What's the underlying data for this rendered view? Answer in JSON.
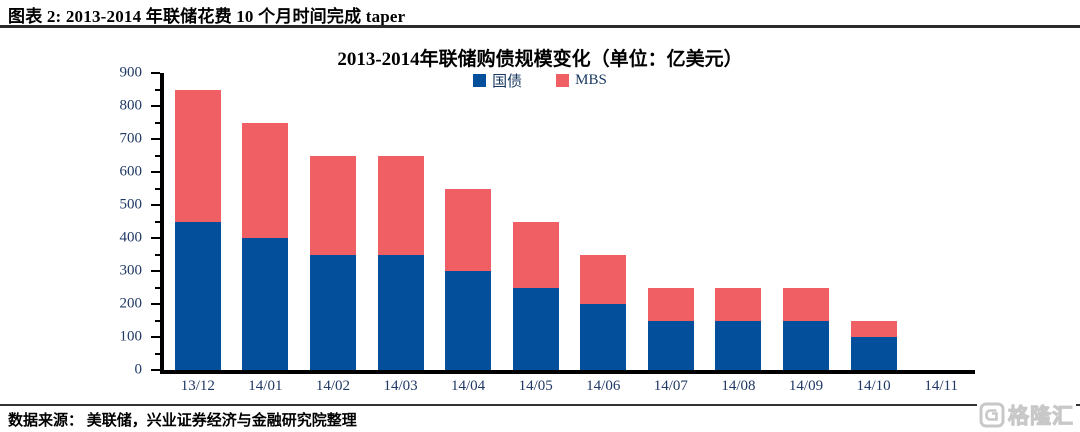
{
  "header": {
    "title": "图表 2: 2013-2014 年联储花费 10 个月时间完成 taper"
  },
  "chart_data": {
    "type": "bar",
    "stacked": true,
    "title": "2013-2014年联储购债规模变化（单位：亿美元）",
    "categories": [
      "13/12",
      "14/01",
      "14/02",
      "14/03",
      "14/04",
      "14/05",
      "14/06",
      "14/07",
      "14/08",
      "14/09",
      "14/10",
      "14/11"
    ],
    "series": [
      {
        "name": "国债",
        "color": "#034F9B",
        "values": [
          450,
          400,
          350,
          350,
          300,
          250,
          200,
          150,
          150,
          150,
          100,
          0
        ]
      },
      {
        "name": "MBS",
        "color": "#EF5F63",
        "values": [
          400,
          350,
          300,
          300,
          250,
          200,
          150,
          100,
          100,
          100,
          50,
          0
        ]
      }
    ],
    "totals": [
      850,
      750,
      650,
      650,
      550,
      450,
      350,
      250,
      250,
      250,
      150,
      0
    ],
    "ylim": [
      0,
      900
    ],
    "ytick_step": 100,
    "minor_tick_step": 50,
    "yticks": [
      0,
      100,
      200,
      300,
      400,
      500,
      600,
      700,
      800,
      900
    ],
    "grid": false,
    "legend_position": "top-center",
    "axis_label_color": "#1F3864"
  },
  "footer": {
    "source": "数据来源： 美联储，兴业证券经济与金融研究院整理"
  },
  "logo": {
    "text": "格隆汇",
    "icon": "gelonghui-g-icon"
  }
}
